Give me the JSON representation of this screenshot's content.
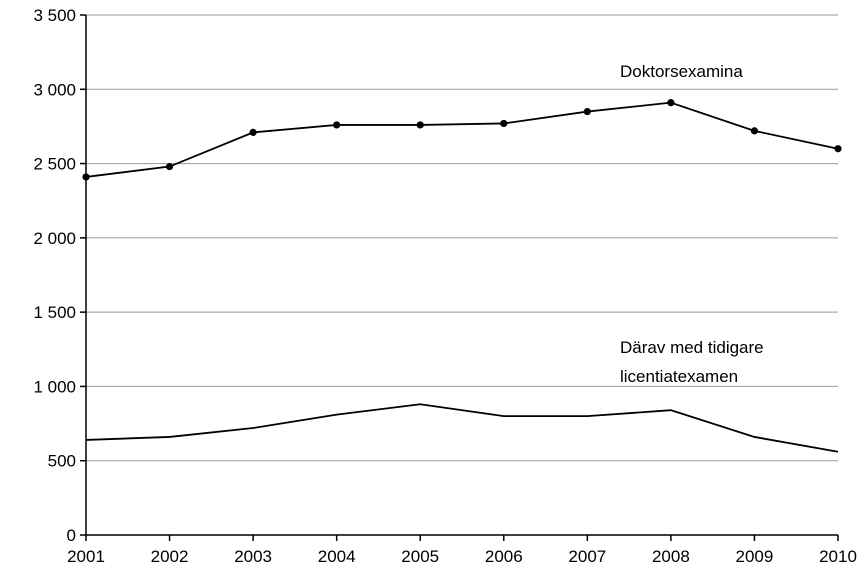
{
  "chart_data": {
    "type": "line",
    "x": [
      "2001",
      "2002",
      "2003",
      "2004",
      "2005",
      "2006",
      "2007",
      "2008",
      "2009",
      "2010"
    ],
    "y_ticks": [
      "0",
      "500",
      "1 000",
      "1 500",
      "2 000",
      "2 500",
      "3 000",
      "3 500"
    ],
    "ylim": [
      0,
      3500
    ],
    "grid": true,
    "series": [
      {
        "name": "Doktorsexamina",
        "markers": true,
        "values": [
          2410,
          2480,
          2710,
          2760,
          2760,
          2770,
          2850,
          2910,
          2720,
          2600
        ]
      },
      {
        "name": "Därav med tidigare",
        "name_line2": "licentiatexamen",
        "markers": false,
        "values": [
          640,
          660,
          720,
          810,
          880,
          800,
          800,
          840,
          660,
          560
        ]
      }
    ]
  }
}
